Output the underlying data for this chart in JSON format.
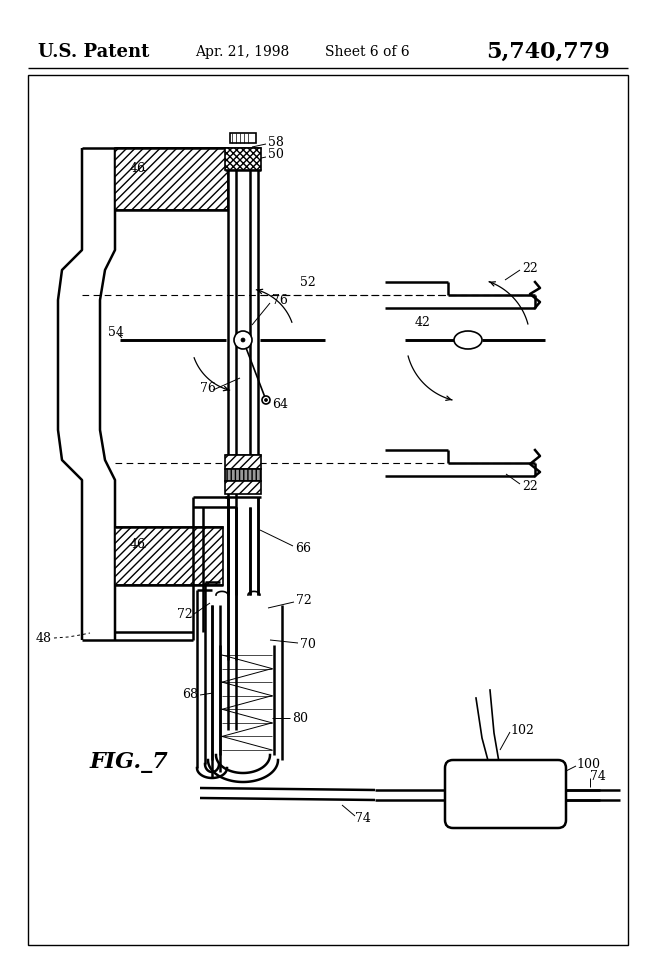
{
  "title_left": "U.S. Patent",
  "title_mid": "Apr. 21, 1998",
  "title_sheet": "Sheet 6 of 6",
  "title_num": "5,740,779",
  "fig_label": "FIG._7",
  "bg_color": "#ffffff",
  "line_color": "#000000",
  "fig_width": 6.56,
  "fig_height": 9.64
}
